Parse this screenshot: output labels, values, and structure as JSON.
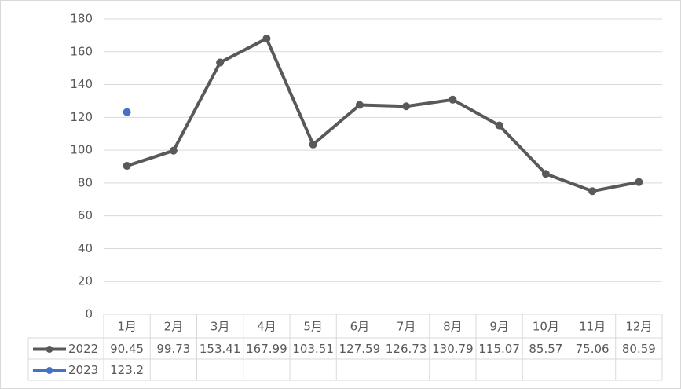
{
  "chart_data": {
    "type": "line",
    "categories": [
      "1月",
      "2月",
      "3月",
      "4月",
      "5月",
      "6月",
      "7月",
      "8月",
      "9月",
      "10月",
      "11月",
      "12月"
    ],
    "series": [
      {
        "name": "2022",
        "color": "#595959",
        "values": [
          90.45,
          99.73,
          153.41,
          167.99,
          103.51,
          127.59,
          126.73,
          130.79,
          115.07,
          85.57,
          75.06,
          80.59
        ]
      },
      {
        "name": "2023",
        "color": "#4472c4",
        "values": [
          123.2,
          null,
          null,
          null,
          null,
          null,
          null,
          null,
          null,
          null,
          null,
          null
        ]
      }
    ],
    "ylim": [
      0,
      180
    ],
    "yticks": [
      0,
      20,
      40,
      60,
      80,
      100,
      120,
      140,
      160,
      180
    ],
    "grid": true
  }
}
